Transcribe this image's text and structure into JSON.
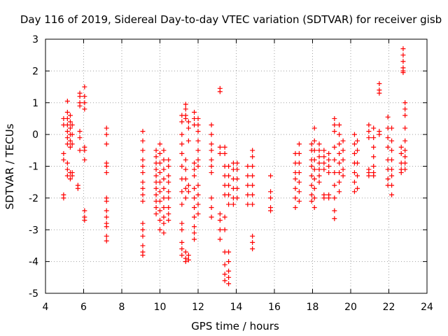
{
  "chart_data": {
    "type": "scatter",
    "title": "Day 116 of 2019, Sidereal Day-to-day VTEC variation (SDTVAR) for receiver gisb",
    "xlabel": "GPS time / hours",
    "ylabel": "SDTVAR / TECUs",
    "xlim": [
      4,
      24
    ],
    "ylim": [
      -5,
      3
    ],
    "xticks": [
      4,
      6,
      8,
      10,
      12,
      14,
      16,
      18,
      20,
      22,
      24
    ],
    "yticks": [
      -5,
      -4,
      -3,
      -2,
      -1,
      0,
      1,
      2,
      3
    ],
    "grid": true,
    "marker": "+",
    "marker_color": "#ff0000",
    "clusters": [
      {
        "x": 4.95,
        "y": [
          0.5,
          0.3,
          -0.6,
          -0.8,
          -1.9,
          -2.0
        ]
      },
      {
        "x": 5.15,
        "y": [
          1.05,
          0.7,
          0.5,
          0.3,
          0.1,
          -0.1,
          -0.3,
          -0.9,
          -1.1,
          -1.3
        ]
      },
      {
        "x": 5.3,
        "y": [
          0.6,
          0.4,
          0.2,
          0.0,
          -0.2,
          -0.4,
          -1.2,
          -1.4
        ]
      },
      {
        "x": 5.4,
        "y": [
          0.3,
          0.0,
          -0.3,
          -1.2,
          -1.3
        ]
      },
      {
        "x": 5.7,
        "y": [
          -1.6,
          -1.7
        ]
      },
      {
        "x": 5.8,
        "y": [
          1.3,
          1.2,
          1.0,
          0.9,
          0.1,
          -0.1,
          -0.5
        ]
      },
      {
        "x": 6.05,
        "y": [
          1.5,
          1.2,
          1.0,
          0.8,
          -0.4,
          -0.5,
          -0.8,
          -2.4,
          -2.6,
          -2.7
        ]
      },
      {
        "x": 7.2,
        "y": [
          0.2,
          0.0,
          -0.3,
          -0.9,
          -1.0,
          -1.2,
          -2.0,
          -2.1,
          -2.4,
          -2.6,
          -2.8,
          -2.9,
          -3.2,
          -3.35
        ]
      },
      {
        "x": 9.1,
        "y": [
          0.1,
          -0.2,
          -0.5,
          -0.8,
          -1.0,
          -1.2,
          -1.5,
          -1.7,
          -1.9,
          -2.1,
          -2.8,
          -3.0,
          -3.2,
          -3.5,
          -3.7,
          -3.8
        ]
      },
      {
        "x": 9.8,
        "y": [
          -0.5,
          -0.7,
          -0.9,
          -1.1,
          -1.3,
          -1.5,
          -1.7,
          -1.9,
          -2.1,
          -2.3,
          -2.5
        ]
      },
      {
        "x": 10.0,
        "y": [
          -0.3,
          -0.6,
          -0.9,
          -1.2,
          -1.5,
          -1.8,
          -2.1,
          -2.4,
          -2.7,
          -3.0
        ]
      },
      {
        "x": 10.2,
        "y": [
          -0.5,
          -0.8,
          -1.1,
          -1.4,
          -1.7,
          -2.0,
          -2.3,
          -2.6,
          -2.8,
          -3.1
        ]
      },
      {
        "x": 10.45,
        "y": [
          -0.8,
          -1.0,
          -1.3,
          -1.5,
          -1.8,
          -2.0,
          -2.3,
          -2.5,
          -2.7
        ]
      },
      {
        "x": 11.15,
        "y": [
          0.6,
          0.4,
          0.0,
          -0.3,
          -0.6,
          -1.0,
          -1.4,
          -1.8,
          -2.2,
          -2.8,
          -3.0,
          -3.4,
          -3.6,
          -3.8
        ]
      },
      {
        "x": 11.35,
        "y": [
          0.95,
          0.8,
          0.6,
          0.5,
          -0.8,
          -1.1,
          -1.4,
          -1.7,
          -2.0,
          -3.7,
          -3.9,
          -4.0
        ]
      },
      {
        "x": 11.5,
        "y": [
          0.4,
          0.2,
          -0.2,
          -1.6,
          -1.8,
          -3.8,
          -3.95
        ]
      },
      {
        "x": 11.8,
        "y": [
          0.7,
          0.5,
          0.3,
          -0.9,
          -1.1,
          -1.3,
          -1.7,
          -2.0,
          -2.3,
          -2.6,
          -2.9,
          -3.1,
          -3.3
        ]
      },
      {
        "x": 12.0,
        "y": [
          0.5,
          0.3,
          0.1,
          -0.2,
          -0.5,
          -0.8,
          -1.0,
          -1.6,
          -1.9,
          -2.2,
          -2.5
        ]
      },
      {
        "x": 12.7,
        "y": [
          0.3,
          0.0,
          -0.3,
          -0.5,
          -0.8,
          -1.0,
          -1.2,
          -2.0,
          -2.3,
          -2.6
        ]
      },
      {
        "x": 13.15,
        "y": [
          1.45,
          1.35,
          -0.4,
          -0.6,
          -2.5,
          -2.7,
          -3.0,
          -3.3
        ]
      },
      {
        "x": 13.4,
        "y": [
          -0.4,
          -0.6,
          -1.0,
          -1.3,
          -1.6,
          -1.9,
          -2.6,
          -3.0,
          -3.7,
          -4.1,
          -4.4,
          -4.6
        ]
      },
      {
        "x": 13.6,
        "y": [
          -1.0,
          -1.3,
          -1.6,
          -1.9,
          -2.2,
          -3.7,
          -4.0,
          -4.3,
          -4.5,
          -4.7
        ]
      },
      {
        "x": 13.85,
        "y": [
          -0.9,
          -1.1,
          -1.4,
          -1.7,
          -2.0,
          -2.2
        ]
      },
      {
        "x": 14.05,
        "y": [
          -0.9,
          -1.1,
          -1.4,
          -1.7,
          -2.0
        ]
      },
      {
        "x": 14.6,
        "y": [
          -1.0,
          -1.3,
          -1.6,
          -1.9,
          -2.2
        ]
      },
      {
        "x": 14.85,
        "y": [
          -0.5,
          -0.7,
          -1.0,
          -1.3,
          -1.6,
          -1.9,
          -2.2,
          -3.2,
          -3.4,
          -3.6
        ]
      },
      {
        "x": 15.8,
        "y": [
          -1.3,
          -1.8,
          -2.0,
          -2.3,
          -2.4
        ]
      },
      {
        "x": 17.1,
        "y": [
          -0.6,
          -0.9,
          -1.2,
          -1.4,
          -1.7,
          -2.0,
          -2.3
        ]
      },
      {
        "x": 17.3,
        "y": [
          -0.3,
          -0.6,
          -0.9,
          -1.2,
          -1.5,
          -1.8,
          -2.1
        ]
      },
      {
        "x": 17.95,
        "y": [
          -0.3,
          -0.5,
          -0.8,
          -1.0,
          -1.3,
          -1.6,
          -1.9,
          -2.1
        ]
      },
      {
        "x": 18.1,
        "y": [
          0.2,
          -0.2,
          -0.5,
          -0.8,
          -1.1,
          -1.4,
          -1.7,
          -2.0,
          -2.3
        ]
      },
      {
        "x": 18.35,
        "y": [
          -0.3,
          -0.5,
          -0.7,
          -0.9,
          -1.1,
          -1.3,
          -1.5
        ]
      },
      {
        "x": 18.6,
        "y": [
          -0.5,
          -0.7,
          -0.9,
          -1.1,
          -1.9,
          -2.0
        ]
      },
      {
        "x": 18.85,
        "y": [
          -0.6,
          -0.8,
          -1.0,
          -1.2,
          -1.9,
          -2.0
        ]
      },
      {
        "x": 19.15,
        "y": [
          0.5,
          0.3,
          0.1,
          -0.4,
          -0.8,
          -1.2,
          -1.6,
          -2.0,
          -2.4,
          -2.65
        ]
      },
      {
        "x": 19.4,
        "y": [
          0.3,
          0.0,
          -0.3,
          -0.6,
          -0.9,
          -1.2,
          -1.5,
          -1.8
        ]
      },
      {
        "x": 19.6,
        "y": [
          -0.2,
          -0.5,
          -0.8,
          -1.1,
          -1.3
        ]
      },
      {
        "x": 20.2,
        "y": [
          0.0,
          -0.3,
          -0.6,
          -0.9,
          -1.2,
          -1.5,
          -1.8
        ]
      },
      {
        "x": 20.35,
        "y": [
          -0.2,
          -0.5,
          -0.9,
          -1.3,
          -1.7
        ]
      },
      {
        "x": 20.95,
        "y": [
          0.3,
          0.1,
          -0.1,
          -1.1,
          -1.2,
          -1.3
        ]
      },
      {
        "x": 21.2,
        "y": [
          0.2,
          -0.1,
          -0.4,
          -0.7,
          -1.0,
          -1.2,
          -1.3
        ]
      },
      {
        "x": 21.5,
        "y": [
          1.6,
          1.4,
          1.3,
          0.1,
          0.0
        ]
      },
      {
        "x": 21.95,
        "y": [
          0.55,
          0.2,
          -0.1,
          -0.4,
          -0.8,
          -1.1,
          -1.4,
          -1.6
        ]
      },
      {
        "x": 22.15,
        "y": [
          0.2,
          -0.2,
          -0.5,
          -0.8,
          -1.1,
          -1.3,
          -1.6,
          -1.9
        ]
      },
      {
        "x": 22.75,
        "y": [
          2.7,
          2.5,
          2.3,
          2.1,
          2.0,
          1.95
        ]
      },
      {
        "x": 22.85,
        "y": [
          1.0,
          0.8,
          0.6,
          0.2,
          -0.2,
          -0.5,
          -0.7,
          -0.9,
          -1.1
        ]
      },
      {
        "x": 22.65,
        "y": [
          -0.4,
          -0.6,
          -0.9,
          -1.1,
          -1.2
        ]
      }
    ]
  }
}
